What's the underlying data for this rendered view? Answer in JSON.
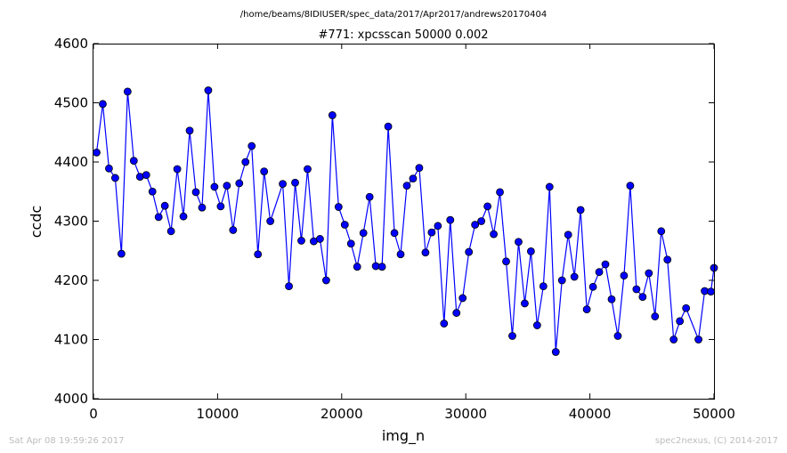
{
  "header": {
    "path": "/home/beams/8IDIUSER/spec_data/2017/Apr2017/andrews20170404"
  },
  "footer": {
    "timestamp": "Sat Apr 08 19:59:26 2017",
    "credit": "spec2nexus, (C) 2014-2017"
  },
  "colors": {
    "line": "#0000ff",
    "marker_fill": "#0000ff",
    "marker_edge": "#000000",
    "axes": "#000000"
  },
  "chart_data": {
    "type": "line",
    "title": "#771: xpcsscan 50000 0.002",
    "xlabel": "img_n",
    "ylabel": "ccdc",
    "xlim": [
      0,
      50000
    ],
    "ylim": [
      4000,
      4600
    ],
    "xticks": [
      0,
      10000,
      20000,
      30000,
      40000,
      50000
    ],
    "xtick_labels": [
      "0",
      "10000",
      "20000",
      "30000",
      "40000",
      "50000"
    ],
    "yticks": [
      4000,
      4100,
      4200,
      4300,
      4400,
      4500,
      4600
    ],
    "ytick_labels": [
      "4000",
      "4100",
      "4200",
      "4300",
      "4400",
      "4500",
      "4600"
    ],
    "grid": false,
    "legend": "none",
    "series": [
      {
        "marker": "circle",
        "x": [
          250,
          750,
          1250,
          1750,
          2250,
          2750,
          3250,
          3750,
          4250,
          4750,
          5250,
          5750,
          6250,
          6750,
          7250,
          7750,
          8250,
          8750,
          9250,
          9750,
          10250,
          10750,
          11250,
          11750,
          12250,
          12750,
          13250,
          13750,
          14250,
          15250,
          15750,
          16250,
          16750,
          17250,
          17750,
          18250,
          18750,
          19250,
          19750,
          20250,
          20750,
          21250,
          21750,
          22250,
          22750,
          23250,
          23750,
          24250,
          24750,
          25250,
          25750,
          26250,
          26750,
          27250,
          27750,
          28250,
          28750,
          29250,
          29750,
          30250,
          30750,
          31250,
          31750,
          32250,
          32750,
          33250,
          33750,
          34250,
          34750,
          35250,
          35750,
          36250,
          36750,
          37250,
          37750,
          38250,
          38750,
          39250,
          39750,
          40250,
          40750,
          41250,
          41750,
          42250,
          42750,
          43250,
          43750,
          44250,
          44750,
          45250,
          45750,
          46250,
          46750,
          47250,
          47750,
          48750,
          49250,
          49750,
          50000
        ],
        "y": [
          4416,
          4498,
          4389,
          4373,
          4245,
          4519,
          4402,
          4375,
          4378,
          4350,
          4307,
          4326,
          4283,
          4388,
          4308,
          4453,
          4349,
          4323,
          4521,
          4358,
          4325,
          4360,
          4285,
          4364,
          4400,
          4427,
          4244,
          4384,
          4300,
          4363,
          4190,
          4365,
          4267,
          4388,
          4266,
          4270,
          4200,
          4479,
          4324,
          4294,
          4262,
          4223,
          4280,
          4341,
          4224,
          4223,
          4460,
          4280,
          4244,
          4360,
          4372,
          4390,
          4247,
          4281,
          4292,
          4127,
          4302,
          4145,
          4170,
          4248,
          4294,
          4300,
          4325,
          4278,
          4349,
          4232,
          4106,
          4265,
          4161,
          4249,
          4124,
          4190,
          4358,
          4079,
          4200,
          4277,
          4206,
          4319,
          4151,
          4189,
          4214,
          4227,
          4168,
          4106,
          4208,
          4360,
          4185,
          4172,
          4212,
          4139,
          4283,
          4235,
          4100,
          4131,
          4153,
          4100,
          4182,
          4181,
          4221
        ]
      }
    ]
  }
}
